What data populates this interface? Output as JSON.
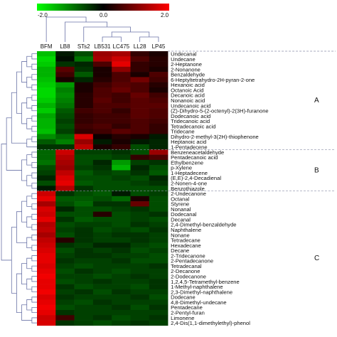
{
  "chart_data": {
    "type": "heatmap",
    "title": "",
    "color_scale": {
      "min": -2.0,
      "mid": 0.0,
      "max": 2.0,
      "tick_labels": [
        "-2.0",
        "0.0",
        "2.0"
      ],
      "low_color": "#00ff00",
      "mid_color": "#000000",
      "high_color": "#ff0000"
    },
    "columns": [
      "BFM",
      "LB8",
      "STs2",
      "LB531",
      "LC475",
      "LL28",
      "LP45"
    ],
    "rows": [
      "Undecanal",
      "Undecane",
      "2-Heptanone",
      "2-Nonanone",
      "Benzaldehyde",
      "6-Heptyltetrahydro-2H-pyran-2-one",
      "Hexanoic acid",
      "Octanoic Acid",
      "Decanoic acid",
      "Nonanoic acid",
      "Undecanoic acid",
      "(Z)-Dihydro-5-(2-octenyl)-2(3H)-furanone",
      "Dodecanoic acid",
      "Tridecanoic acid",
      "Tetradecanoic acid",
      "Tridecane",
      "Dihydro-2-methyl-3(2H)-thiophenone",
      "Heptanoic acid",
      "1-Pentadecene",
      "Benzeneacetaldehyde",
      "Pentadecanoic acid",
      "Ethylbenzene",
      "p-Xylene",
      "1-Heptadecene",
      "(E,E)-2,4-Decadienal",
      "2-Nonen-4-one",
      "Benzothiazole",
      "2-Undecanone",
      "Octanal",
      "Styrene",
      "Nonanal",
      "Dodecanal",
      "Decanal",
      "2,4-Dimethyl-benzaldehyde",
      "Naphthalene",
      "Nonane",
      "Tetradecane",
      "Hexadecane",
      "Decane",
      "2-Tridecanone",
      "2-Pentadecanone",
      "Tetradecanal",
      "2-Decanone",
      "2-Dodecanone",
      "1,2,4,5-Tetramethyl-benzene",
      "1-Methyl-naphthalene",
      "2,3-Dimethyl-naphthalene",
      "Dodecane",
      "4,8-Dimethyl-undecane",
      "Pentadecane",
      "2-Pentyl-furan",
      "Limonene",
      "2,4-Dis(1,1-dimethylethyl)-phenol"
    ],
    "values": [
      [
        -1.5,
        -0.2,
        -0.6,
        1.2,
        1.3,
        0.4,
        0.2
      ],
      [
        -1.7,
        -0.1,
        -0.9,
        1.3,
        1.6,
        0.6,
        0.3
      ],
      [
        -1.6,
        -0.4,
        -0.3,
        0.6,
        1.8,
        0.4,
        0.3
      ],
      [
        -1.4,
        0.7,
        -0.4,
        0.2,
        1.1,
        0.4,
        0.2
      ],
      [
        -1.4,
        0.5,
        -0.7,
        0.2,
        0.6,
        0.2,
        0.6
      ],
      [
        -1.5,
        0.2,
        -0.3,
        0.3,
        0.6,
        0.9,
        0.5
      ],
      [
        -1.6,
        -1.2,
        0.2,
        0.5,
        0.7,
        0.6,
        0.3
      ],
      [
        -1.7,
        -1.0,
        0.2,
        0.6,
        0.8,
        0.6,
        0.2
      ],
      [
        -1.7,
        -1.1,
        0.3,
        0.6,
        0.5,
        0.8,
        0.5
      ],
      [
        -1.6,
        -1.0,
        0.3,
        0.7,
        0.5,
        0.7,
        0.6
      ],
      [
        -1.4,
        -0.9,
        0.3,
        0.6,
        0.6,
        0.7,
        0.7
      ],
      [
        -1.6,
        -0.7,
        0.5,
        0.6,
        0.4,
        0.7,
        0.6
      ],
      [
        -1.3,
        -0.6,
        0.4,
        0.5,
        0.5,
        0.7,
        0.6
      ],
      [
        -1.4,
        -0.5,
        0.4,
        0.5,
        0.5,
        0.6,
        0.5
      ],
      [
        -1.4,
        -0.6,
        0.5,
        0.6,
        0.4,
        0.6,
        0.4
      ],
      [
        -1.5,
        -0.5,
        0.4,
        0.5,
        0.7,
        0.6,
        0.4
      ],
      [
        -1.1,
        -0.8,
        1.7,
        0.1,
        0.3,
        0.2,
        -0.2
      ],
      [
        -0.7,
        -1.0,
        1.2,
        -0.2,
        0.2,
        -0.2,
        -0.3
      ],
      [
        -0.4,
        -0.4,
        1.5,
        0.2,
        0.4,
        -0.6,
        -0.3
      ],
      [
        -0.8,
        1.6,
        -0.5,
        -0.5,
        -0.4,
        -0.6,
        1.2
      ],
      [
        -0.8,
        1.4,
        -0.6,
        -0.6,
        -0.5,
        0.4,
        0.6
      ],
      [
        -0.9,
        1.3,
        -0.6,
        -0.3,
        -1.2,
        -0.5,
        -0.4
      ],
      [
        -0.6,
        1.2,
        -0.5,
        -0.4,
        -1.4,
        -0.3,
        -0.6
      ],
      [
        -0.5,
        1.5,
        -0.7,
        -0.5,
        -0.6,
        -0.4,
        -0.7
      ],
      [
        -0.3,
        1.7,
        -0.6,
        -0.6,
        -0.5,
        -0.6,
        -0.3
      ],
      [
        -0.6,
        1.8,
        -0.7,
        -0.6,
        -0.6,
        -0.5,
        -0.4
      ],
      [
        -0.2,
        1.4,
        -0.4,
        -0.6,
        -0.6,
        -0.6,
        -0.6
      ],
      [
        1.6,
        -0.4,
        -0.6,
        -0.7,
        -0.2,
        -0.6,
        -0.5
      ],
      [
        1.8,
        -0.7,
        -0.7,
        -0.6,
        -0.8,
        0.2,
        -0.6
      ],
      [
        1.3,
        -0.6,
        -0.8,
        -0.4,
        -0.4,
        0.8,
        -0.6
      ],
      [
        1.7,
        -0.3,
        -0.6,
        -0.6,
        -0.5,
        -0.4,
        -0.6
      ],
      [
        1.6,
        -0.6,
        -0.6,
        0.3,
        -0.6,
        -0.5,
        -0.4
      ],
      [
        1.8,
        -0.4,
        -0.7,
        -0.6,
        -0.6,
        -0.5,
        -0.6
      ],
      [
        1.4,
        -0.6,
        -0.5,
        -0.5,
        -0.6,
        -0.4,
        -0.5
      ],
      [
        1.5,
        -0.5,
        -0.4,
        -0.6,
        -0.5,
        -0.6,
        -0.4
      ],
      [
        1.3,
        -0.6,
        -0.4,
        -0.5,
        -0.4,
        -0.4,
        -0.5
      ],
      [
        1.5,
        0.3,
        -0.4,
        -0.5,
        -0.5,
        -0.4,
        -0.5
      ],
      [
        1.6,
        -0.4,
        -0.5,
        -0.3,
        -0.3,
        -0.5,
        -0.6
      ],
      [
        1.7,
        -0.6,
        -0.4,
        -0.5,
        -0.4,
        -0.6,
        -0.5
      ],
      [
        1.8,
        -0.5,
        -0.4,
        -0.4,
        -0.5,
        -0.5,
        -0.6
      ],
      [
        1.8,
        -0.4,
        -0.5,
        -0.5,
        -0.4,
        -0.6,
        -0.6
      ],
      [
        1.7,
        -0.5,
        -0.6,
        -0.5,
        -0.5,
        -0.5,
        -0.4
      ],
      [
        1.8,
        -0.6,
        -0.4,
        -0.5,
        -0.6,
        -0.5,
        -0.5
      ],
      [
        1.9,
        -0.5,
        -0.5,
        -0.6,
        -0.5,
        -0.4,
        -0.5
      ],
      [
        1.8,
        -0.6,
        -0.5,
        -0.4,
        -0.5,
        -0.5,
        -0.4
      ],
      [
        1.8,
        -0.4,
        -0.6,
        -0.5,
        -0.5,
        -0.6,
        -0.4
      ],
      [
        1.9,
        -0.5,
        -0.4,
        -0.6,
        -0.4,
        -0.5,
        -0.5
      ],
      [
        1.7,
        -0.4,
        -0.5,
        -0.5,
        -0.5,
        -0.4,
        -0.6
      ],
      [
        1.8,
        -0.5,
        -0.6,
        -0.4,
        -0.5,
        -0.5,
        -0.5
      ],
      [
        1.9,
        -0.6,
        -0.5,
        -0.5,
        -0.4,
        -0.6,
        -0.4
      ],
      [
        1.8,
        -0.4,
        -0.5,
        -0.5,
        -0.5,
        -0.5,
        -0.5
      ],
      [
        1.6,
        0.5,
        -0.5,
        -0.4,
        -0.6,
        -0.5,
        -0.4
      ],
      [
        1.7,
        -0.4,
        -0.5,
        -0.6,
        -0.5,
        -0.4,
        -0.5
      ]
    ],
    "clusters": [
      {
        "label": "A",
        "first_row": 0,
        "last_row": 18
      },
      {
        "label": "B",
        "first_row": 19,
        "last_row": 26
      },
      {
        "label": "C",
        "first_row": 27,
        "last_row": 52
      }
    ],
    "dendrogram_color": "#6b74a8"
  }
}
